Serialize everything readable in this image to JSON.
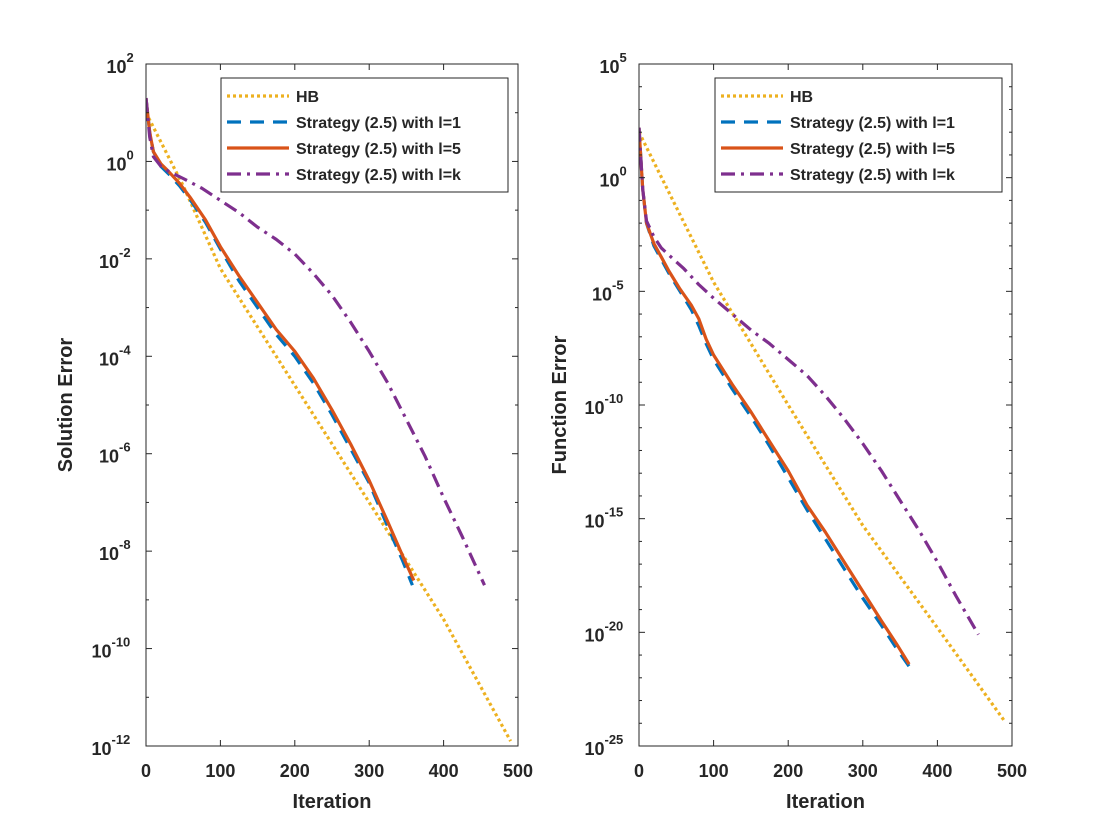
{
  "chart_data": [
    {
      "type": "line",
      "title": "",
      "xlabel": "Iteration",
      "ylabel": "Solution Error",
      "yscale": "log",
      "xlim": [
        0,
        500
      ],
      "ylim_log10": [
        -12,
        2
      ],
      "xticks": [
        0,
        100,
        200,
        300,
        400,
        500
      ],
      "xtick_labels": [
        "0",
        "100",
        "200",
        "300",
        "400",
        "500"
      ],
      "yticks_exp": [
        -12,
        -10,
        -8,
        -6,
        -4,
        -2,
        0,
        2
      ],
      "ytick_base": "10",
      "ytick_exponents": [
        "-12",
        "-10",
        "-8",
        "-6",
        "-4",
        "-2",
        "0",
        "2"
      ],
      "legend_position": "top-right",
      "series": [
        {
          "name": "HB",
          "color": "#EDB120",
          "style": "dotted",
          "x": [
            0,
            50,
            100,
            200,
            300,
            400,
            490
          ],
          "log10_y": [
            1.0,
            -0.5,
            -2.2,
            -4.6,
            -7.0,
            -9.4,
            -11.9
          ]
        },
        {
          "name": "Strategy (2.5) with l=1",
          "color": "#0072BD",
          "style": "dashed",
          "x": [
            0,
            5,
            10,
            20,
            30,
            45,
            60,
            80,
            100,
            125,
            150,
            175,
            200,
            225,
            250,
            275,
            300,
            325,
            345,
            358
          ],
          "log10_y": [
            1.3,
            0.6,
            0.2,
            -0.1,
            -0.25,
            -0.5,
            -0.8,
            -1.25,
            -1.8,
            -2.45,
            -3.0,
            -3.55,
            -4.0,
            -4.55,
            -5.2,
            -5.9,
            -6.6,
            -7.5,
            -8.2,
            -8.7
          ]
        },
        {
          "name": "Strategy (2.5) with l=5",
          "color": "#D95319",
          "style": "solid",
          "x": [
            0,
            5,
            10,
            20,
            30,
            45,
            60,
            80,
            100,
            125,
            150,
            175,
            200,
            225,
            250,
            275,
            300,
            325,
            345,
            360
          ],
          "log10_y": [
            1.3,
            0.6,
            0.2,
            -0.05,
            -0.2,
            -0.45,
            -0.75,
            -1.2,
            -1.75,
            -2.35,
            -2.9,
            -3.45,
            -3.9,
            -4.45,
            -5.1,
            -5.8,
            -6.55,
            -7.4,
            -8.1,
            -8.6
          ]
        },
        {
          "name": "Strategy (2.5) with l=k",
          "color": "#7E2F8E",
          "style": "dashdot",
          "x": [
            0,
            5,
            10,
            20,
            30,
            50,
            75,
            100,
            125,
            150,
            175,
            200,
            225,
            250,
            275,
            300,
            325,
            350,
            375,
            400,
            425,
            455
          ],
          "log10_y": [
            1.3,
            0.5,
            0.1,
            -0.1,
            -0.2,
            -0.35,
            -0.55,
            -0.8,
            -1.05,
            -1.35,
            -1.6,
            -1.9,
            -2.3,
            -2.75,
            -3.3,
            -3.9,
            -4.55,
            -5.3,
            -6.05,
            -6.9,
            -7.7,
            -8.7
          ]
        }
      ]
    },
    {
      "type": "line",
      "title": "",
      "xlabel": "Iteration",
      "ylabel": "Function Error",
      "yscale": "log",
      "xlim": [
        0,
        500
      ],
      "ylim_log10": [
        -25,
        5
      ],
      "xticks": [
        0,
        100,
        200,
        300,
        400,
        500
      ],
      "xtick_labels": [
        "0",
        "100",
        "200",
        "300",
        "400",
        "500"
      ],
      "yticks_exp": [
        -25,
        -20,
        -15,
        -10,
        -5,
        0,
        5
      ],
      "ytick_base": "10",
      "ytick_exponents": [
        "-25",
        "-20",
        "-15",
        "-10",
        "-5",
        "0",
        "5"
      ],
      "legend_position": "top-right",
      "series": [
        {
          "name": "HB",
          "color": "#EDB120",
          "style": "dotted",
          "x": [
            0,
            50,
            100,
            150,
            200,
            300,
            400,
            490
          ],
          "log10_y": [
            2.0,
            -1.3,
            -4.6,
            -7.3,
            -10.0,
            -15.3,
            -19.8,
            -23.9
          ]
        },
        {
          "name": "Strategy (2.5) with l=1",
          "color": "#0072BD",
          "style": "dashed",
          "x": [
            0,
            5,
            10,
            20,
            30,
            40,
            55,
            70,
            80,
            90,
            100,
            125,
            150,
            175,
            200,
            225,
            250,
            275,
            300,
            325,
            345,
            362
          ],
          "log10_y": [
            2.2,
            -0.5,
            -2.0,
            -3.0,
            -3.6,
            -4.2,
            -5.0,
            -5.8,
            -6.5,
            -7.3,
            -8.0,
            -9.3,
            -10.5,
            -11.8,
            -13.2,
            -14.6,
            -15.9,
            -17.2,
            -18.5,
            -19.7,
            -20.7,
            -21.5
          ]
        },
        {
          "name": "Strategy (2.5) with l=5",
          "color": "#D95319",
          "style": "solid",
          "x": [
            0,
            5,
            10,
            20,
            30,
            40,
            55,
            70,
            80,
            90,
            100,
            125,
            150,
            175,
            200,
            225,
            250,
            275,
            300,
            325,
            345,
            362
          ],
          "log10_y": [
            2.2,
            -0.5,
            -2.0,
            -2.9,
            -3.5,
            -4.1,
            -4.9,
            -5.6,
            -6.2,
            -7.1,
            -7.8,
            -9.1,
            -10.3,
            -11.6,
            -12.9,
            -14.4,
            -15.6,
            -16.9,
            -18.2,
            -19.5,
            -20.5,
            -21.4
          ]
        },
        {
          "name": "Strategy (2.5) with l=k",
          "color": "#7E2F8E",
          "style": "dashdot",
          "x": [
            0,
            5,
            10,
            20,
            30,
            40,
            60,
            80,
            100,
            125,
            150,
            175,
            200,
            225,
            250,
            275,
            300,
            325,
            350,
            375,
            400,
            425,
            455
          ],
          "log10_y": [
            2.2,
            -0.5,
            -1.9,
            -2.6,
            -3.1,
            -3.4,
            -4.0,
            -4.7,
            -5.3,
            -6.0,
            -6.7,
            -7.3,
            -8.0,
            -8.7,
            -9.6,
            -10.6,
            -11.7,
            -12.9,
            -14.2,
            -15.5,
            -16.9,
            -18.4,
            -20.1
          ]
        }
      ]
    }
  ]
}
